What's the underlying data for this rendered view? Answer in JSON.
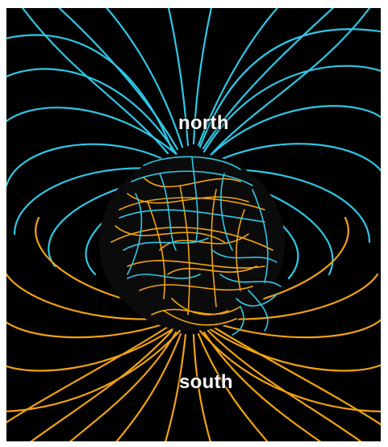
{
  "labels": {
    "north": "north",
    "south": "south"
  },
  "colors": {
    "background": "#000000",
    "north_field": "#2ec8e6",
    "south_field": "#f2a30f",
    "label_text": "#ffffff"
  }
}
